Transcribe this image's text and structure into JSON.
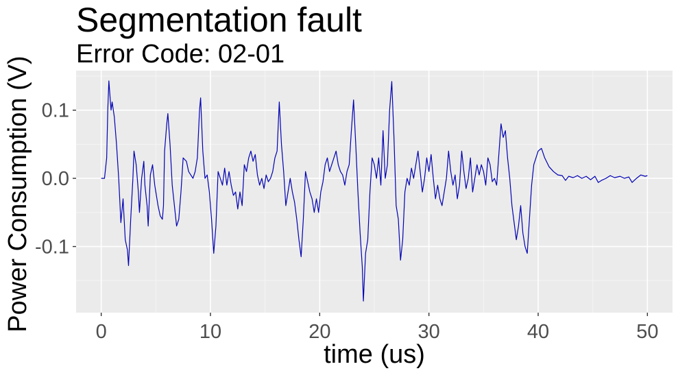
{
  "colors": {
    "panel_background": "#ebebeb",
    "grid_major": "#ffffff",
    "grid_minor": "#f5f5f5",
    "line": "#0000b3",
    "tick_text": "#4d4d4d"
  },
  "chart_data": {
    "type": "line",
    "title": "Segmentation fault",
    "subtitle": "Error Code: 02-01",
    "xlabel": "time (us)",
    "ylabel": "Power Consumption (V)",
    "xlim": [
      -2.3,
      52.3
    ],
    "ylim": [
      -0.197,
      0.158
    ],
    "x_ticks": [
      0,
      10,
      20,
      30,
      40,
      50
    ],
    "x_tick_labels": [
      "0",
      "10",
      "20",
      "30",
      "40",
      "50"
    ],
    "y_ticks": [
      -0.1,
      0.0,
      0.1
    ],
    "y_tick_labels": [
      "-0.1",
      "0.0",
      "0.1"
    ],
    "grid": true,
    "legend": "none",
    "series": [
      {
        "points": [
          [
            0.0,
            0.0
          ],
          [
            0.3,
            0.0
          ],
          [
            0.5,
            0.03
          ],
          [
            0.6,
            0.1
          ],
          [
            0.7,
            0.143
          ],
          [
            0.9,
            0.1
          ],
          [
            1.0,
            0.112
          ],
          [
            1.2,
            0.09
          ],
          [
            1.4,
            0.05
          ],
          [
            1.6,
            0.0
          ],
          [
            1.8,
            -0.065
          ],
          [
            2.0,
            -0.03
          ],
          [
            2.2,
            -0.09
          ],
          [
            2.4,
            -0.105
          ],
          [
            2.5,
            -0.128
          ],
          [
            2.7,
            -0.06
          ],
          [
            2.9,
            0.0
          ],
          [
            3.0,
            0.04
          ],
          [
            3.2,
            0.02
          ],
          [
            3.4,
            -0.02
          ],
          [
            3.5,
            -0.05
          ],
          [
            3.7,
            0.0
          ],
          [
            3.9,
            0.025
          ],
          [
            4.0,
            -0.01
          ],
          [
            4.2,
            -0.04
          ],
          [
            4.3,
            -0.07
          ],
          [
            4.5,
            0.005
          ],
          [
            4.7,
            0.02
          ],
          [
            4.9,
            -0.01
          ],
          [
            5.0,
            -0.02
          ],
          [
            5.2,
            -0.04
          ],
          [
            5.4,
            -0.055
          ],
          [
            5.6,
            -0.06
          ],
          [
            5.7,
            -0.04
          ],
          [
            5.8,
            0.04
          ],
          [
            6.0,
            0.08
          ],
          [
            6.1,
            0.095
          ],
          [
            6.3,
            0.05
          ],
          [
            6.5,
            -0.01
          ],
          [
            6.7,
            -0.04
          ],
          [
            6.9,
            -0.07
          ],
          [
            7.1,
            -0.06
          ],
          [
            7.3,
            -0.02
          ],
          [
            7.5,
            0.03
          ],
          [
            7.8,
            0.025
          ],
          [
            8.0,
            0.01
          ],
          [
            8.2,
            0.005
          ],
          [
            8.4,
            0.0
          ],
          [
            8.6,
            0.01
          ],
          [
            8.8,
            0.03
          ],
          [
            9.0,
            0.1
          ],
          [
            9.1,
            0.118
          ],
          [
            9.3,
            0.04
          ],
          [
            9.5,
            0.0
          ],
          [
            9.7,
            0.005
          ],
          [
            9.9,
            -0.02
          ],
          [
            10.1,
            -0.06
          ],
          [
            10.3,
            -0.11
          ],
          [
            10.5,
            -0.07
          ],
          [
            10.7,
            0.01
          ],
          [
            10.9,
            0.0
          ],
          [
            11.1,
            -0.01
          ],
          [
            11.3,
            0.015
          ],
          [
            11.5,
            -0.01
          ],
          [
            11.7,
            0.01
          ],
          [
            11.9,
            -0.01
          ],
          [
            12.1,
            -0.025
          ],
          [
            12.3,
            -0.02
          ],
          [
            12.5,
            -0.045
          ],
          [
            12.7,
            -0.02
          ],
          [
            12.9,
            -0.04
          ],
          [
            13.1,
            0.02
          ],
          [
            13.3,
            0.01
          ],
          [
            13.5,
            0.03
          ],
          [
            13.7,
            0.04
          ],
          [
            13.9,
            0.025
          ],
          [
            14.1,
            0.035
          ],
          [
            14.3,
            0.005
          ],
          [
            14.5,
            -0.01
          ],
          [
            14.7,
            0.0
          ],
          [
            14.9,
            -0.015
          ],
          [
            15.1,
            0.005
          ],
          [
            15.3,
            -0.005
          ],
          [
            15.5,
            0.0
          ],
          [
            15.7,
            0.01
          ],
          [
            15.9,
            0.03
          ],
          [
            16.1,
            0.04
          ],
          [
            16.3,
            0.112
          ],
          [
            16.5,
            0.05
          ],
          [
            16.7,
            0.01
          ],
          [
            16.9,
            -0.04
          ],
          [
            17.1,
            -0.02
          ],
          [
            17.3,
            0.0
          ],
          [
            17.5,
            -0.02
          ],
          [
            17.7,
            -0.035
          ],
          [
            17.9,
            -0.06
          ],
          [
            18.1,
            -0.09
          ],
          [
            18.3,
            -0.115
          ],
          [
            18.5,
            -0.06
          ],
          [
            18.7,
            0.01
          ],
          [
            18.9,
            -0.005
          ],
          [
            19.1,
            -0.02
          ],
          [
            19.3,
            -0.03
          ],
          [
            19.5,
            -0.05
          ],
          [
            19.7,
            -0.03
          ],
          [
            19.9,
            -0.05
          ],
          [
            20.1,
            -0.02
          ],
          [
            20.3,
            -0.005
          ],
          [
            20.5,
            0.02
          ],
          [
            20.7,
            0.03
          ],
          [
            20.9,
            0.01
          ],
          [
            21.1,
            0.02
          ],
          [
            21.3,
            0.03
          ],
          [
            21.5,
            0.04
          ],
          [
            21.7,
            0.02
          ],
          [
            21.9,
            0.01
          ],
          [
            22.1,
            0.005
          ],
          [
            22.3,
            -0.01
          ],
          [
            22.5,
            0.01
          ],
          [
            22.7,
            0.02
          ],
          [
            22.9,
            0.07
          ],
          [
            23.1,
            0.115
          ],
          [
            23.3,
            0.05
          ],
          [
            23.5,
            -0.02
          ],
          [
            23.7,
            -0.08
          ],
          [
            23.9,
            -0.13
          ],
          [
            24.0,
            -0.18
          ],
          [
            24.2,
            -0.11
          ],
          [
            24.4,
            -0.09
          ],
          [
            24.6,
            -0.02
          ],
          [
            24.8,
            0.03
          ],
          [
            25.0,
            0.02
          ],
          [
            25.2,
            0.0
          ],
          [
            25.4,
            0.03
          ],
          [
            25.6,
            -0.01
          ],
          [
            25.8,
            0.07
          ],
          [
            26.0,
            0.0
          ],
          [
            26.2,
            0.02
          ],
          [
            26.4,
            0.1
          ],
          [
            26.6,
            0.142
          ],
          [
            26.8,
            0.06
          ],
          [
            27.0,
            -0.04
          ],
          [
            27.2,
            -0.06
          ],
          [
            27.4,
            -0.12
          ],
          [
            27.6,
            -0.09
          ],
          [
            27.8,
            -0.02
          ],
          [
            28.0,
            0.0
          ],
          [
            28.2,
            -0.01
          ],
          [
            28.4,
            0.015
          ],
          [
            28.6,
            0.0
          ],
          [
            28.8,
            0.02
          ],
          [
            29.0,
            0.04
          ],
          [
            29.2,
            0.01
          ],
          [
            29.4,
            -0.02
          ],
          [
            29.6,
            0.0
          ],
          [
            29.8,
            0.03
          ],
          [
            30.0,
            0.01
          ],
          [
            30.2,
            0.035
          ],
          [
            30.4,
            0.0
          ],
          [
            30.6,
            -0.03
          ],
          [
            30.8,
            -0.01
          ],
          [
            31.0,
            -0.03
          ],
          [
            31.2,
            -0.04
          ],
          [
            31.4,
            -0.02
          ],
          [
            31.6,
            0.0
          ],
          [
            31.8,
            0.04
          ],
          [
            32.0,
            0.01
          ],
          [
            32.2,
            -0.01
          ],
          [
            32.4,
            0.005
          ],
          [
            32.6,
            -0.03
          ],
          [
            32.8,
            -0.01
          ],
          [
            33.0,
            0.04
          ],
          [
            33.2,
            0.01
          ],
          [
            33.4,
            -0.015
          ],
          [
            33.6,
            0.0
          ],
          [
            33.8,
            0.03
          ],
          [
            34.0,
            -0.02
          ],
          [
            34.2,
            0.0
          ],
          [
            34.4,
            0.02
          ],
          [
            34.6,
            0.005
          ],
          [
            34.8,
            0.02
          ],
          [
            35.0,
            0.01
          ],
          [
            35.2,
            -0.01
          ],
          [
            35.4,
            0.03
          ],
          [
            35.6,
            0.02
          ],
          [
            35.8,
            -0.005
          ],
          [
            36.0,
            0.0
          ],
          [
            36.2,
            -0.01
          ],
          [
            36.4,
            0.035
          ],
          [
            36.6,
            0.08
          ],
          [
            36.8,
            0.06
          ],
          [
            37.0,
            0.07
          ],
          [
            37.2,
            0.03
          ],
          [
            37.4,
            0.0
          ],
          [
            37.6,
            -0.04
          ],
          [
            37.8,
            -0.065
          ],
          [
            38.0,
            -0.09
          ],
          [
            38.2,
            -0.07
          ],
          [
            38.4,
            -0.04
          ],
          [
            38.6,
            -0.08
          ],
          [
            38.8,
            -0.1
          ],
          [
            39.0,
            -0.11
          ],
          [
            39.2,
            -0.06
          ],
          [
            39.4,
            -0.01
          ],
          [
            39.6,
            0.02
          ],
          [
            39.8,
            0.03
          ],
          [
            40.0,
            0.04
          ],
          [
            40.3,
            0.044
          ],
          [
            40.6,
            0.03
          ],
          [
            41.0,
            0.017
          ],
          [
            41.4,
            0.01
          ],
          [
            41.8,
            0.005
          ],
          [
            42.2,
            0.004
          ],
          [
            42.5,
            -0.003
          ],
          [
            42.8,
            0.003
          ],
          [
            43.2,
            0.001
          ],
          [
            43.6,
            0.004
          ],
          [
            44.0,
            0.0
          ],
          [
            44.4,
            0.003
          ],
          [
            44.8,
            -0.002
          ],
          [
            45.2,
            0.003
          ],
          [
            45.5,
            -0.006
          ],
          [
            45.8,
            -0.003
          ],
          [
            46.2,
            0.0
          ],
          [
            46.6,
            0.004
          ],
          [
            47.0,
            0.001
          ],
          [
            47.5,
            0.003
          ],
          [
            47.9,
            0.0
          ],
          [
            48.3,
            0.002
          ],
          [
            48.6,
            -0.006
          ],
          [
            49.0,
            0.0
          ],
          [
            49.4,
            0.005
          ],
          [
            49.8,
            0.003
          ],
          [
            50.0,
            0.004
          ]
        ]
      }
    ]
  }
}
